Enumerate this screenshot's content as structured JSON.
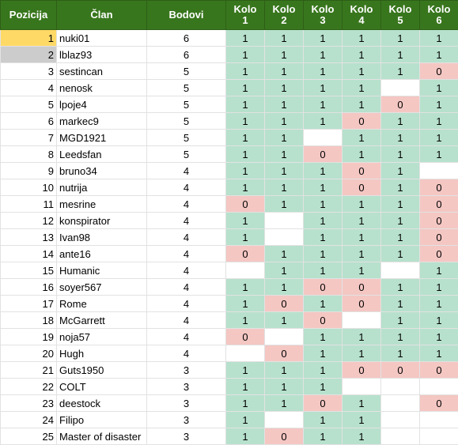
{
  "header": {
    "pos": "Pozicija",
    "name": "Član",
    "points": "Bodovi",
    "rounds": [
      {
        "l1": "Kolo",
        "l2": "1"
      },
      {
        "l1": "Kolo",
        "l2": "2"
      },
      {
        "l1": "Kolo",
        "l2": "3"
      },
      {
        "l1": "Kolo",
        "l2": "4"
      },
      {
        "l1": "Kolo",
        "l2": "5"
      },
      {
        "l1": "Kolo",
        "l2": "6"
      }
    ]
  },
  "colors": {
    "header_bg": "#38761d",
    "win": "#b7e1cd",
    "loss": "#f4c7c3",
    "first_place": "#ffd966",
    "second_place": "#cccccc"
  },
  "rows": [
    {
      "pos": "1",
      "name": "nuki01",
      "points": "6",
      "rounds": [
        "1",
        "1",
        "1",
        "1",
        "1",
        "1"
      ]
    },
    {
      "pos": "2",
      "name": "lblaz93",
      "points": "6",
      "rounds": [
        "1",
        "1",
        "1",
        "1",
        "1",
        "1"
      ]
    },
    {
      "pos": "3",
      "name": "sestincan",
      "points": "5",
      "rounds": [
        "1",
        "1",
        "1",
        "1",
        "1",
        "0"
      ]
    },
    {
      "pos": "4",
      "name": "nenosk",
      "points": "5",
      "rounds": [
        "1",
        "1",
        "1",
        "1",
        "",
        "1"
      ]
    },
    {
      "pos": "5",
      "name": "lpoje4",
      "points": "5",
      "rounds": [
        "1",
        "1",
        "1",
        "1",
        "0",
        "1"
      ]
    },
    {
      "pos": "6",
      "name": "markec9",
      "points": "5",
      "rounds": [
        "1",
        "1",
        "1",
        "0",
        "1",
        "1"
      ]
    },
    {
      "pos": "7",
      "name": "MGD1921",
      "points": "5",
      "rounds": [
        "1",
        "1",
        "",
        "1",
        "1",
        "1"
      ]
    },
    {
      "pos": "8",
      "name": "Leedsfan",
      "points": "5",
      "rounds": [
        "1",
        "1",
        "0",
        "1",
        "1",
        "1"
      ]
    },
    {
      "pos": "9",
      "name": "bruno34",
      "points": "4",
      "rounds": [
        "1",
        "1",
        "1",
        "0",
        "1",
        ""
      ]
    },
    {
      "pos": "10",
      "name": "nutrija",
      "points": "4",
      "rounds": [
        "1",
        "1",
        "1",
        "0",
        "1",
        "0"
      ]
    },
    {
      "pos": "11",
      "name": "mesrine",
      "points": "4",
      "rounds": [
        "0",
        "1",
        "1",
        "1",
        "1",
        "0"
      ]
    },
    {
      "pos": "12",
      "name": "konspirator",
      "points": "4",
      "rounds": [
        "1",
        "",
        "1",
        "1",
        "1",
        "0"
      ]
    },
    {
      "pos": "13",
      "name": "Ivan98",
      "points": "4",
      "rounds": [
        "1",
        "",
        "1",
        "1",
        "1",
        "0"
      ]
    },
    {
      "pos": "14",
      "name": "ante16",
      "points": "4",
      "rounds": [
        "0",
        "1",
        "1",
        "1",
        "1",
        "0"
      ]
    },
    {
      "pos": "15",
      "name": "Humanic",
      "points": "4",
      "rounds": [
        "",
        "1",
        "1",
        "1",
        "",
        "1"
      ]
    },
    {
      "pos": "16",
      "name": "soyer567",
      "points": "4",
      "rounds": [
        "1",
        "1",
        "0",
        "0",
        "1",
        "1"
      ]
    },
    {
      "pos": "17",
      "name": "Rome",
      "points": "4",
      "rounds": [
        "1",
        "0",
        "1",
        "0",
        "1",
        "1"
      ]
    },
    {
      "pos": "18",
      "name": "McGarrett",
      "points": "4",
      "rounds": [
        "1",
        "1",
        "0",
        "",
        "1",
        "1"
      ]
    },
    {
      "pos": "19",
      "name": "noja57",
      "points": "4",
      "rounds": [
        "0",
        "",
        "1",
        "1",
        "1",
        "1"
      ]
    },
    {
      "pos": "20",
      "name": "Hugh",
      "points": "4",
      "rounds": [
        "",
        "0",
        "1",
        "1",
        "1",
        "1"
      ]
    },
    {
      "pos": "21",
      "name": "Guts1950",
      "points": "3",
      "rounds": [
        "1",
        "1",
        "1",
        "0",
        "0",
        "0"
      ]
    },
    {
      "pos": "22",
      "name": "COLT",
      "points": "3",
      "rounds": [
        "1",
        "1",
        "1",
        "",
        "",
        ""
      ]
    },
    {
      "pos": "23",
      "name": "deestock",
      "points": "3",
      "rounds": [
        "1",
        "1",
        "0",
        "1",
        "",
        "0"
      ]
    },
    {
      "pos": "24",
      "name": "Filipo",
      "points": "3",
      "rounds": [
        "1",
        "",
        "1",
        "1",
        "",
        ""
      ]
    },
    {
      "pos": "25",
      "name": "Master of disaster",
      "points": "3",
      "rounds": [
        "1",
        "0",
        "1",
        "1",
        "",
        ""
      ]
    }
  ]
}
